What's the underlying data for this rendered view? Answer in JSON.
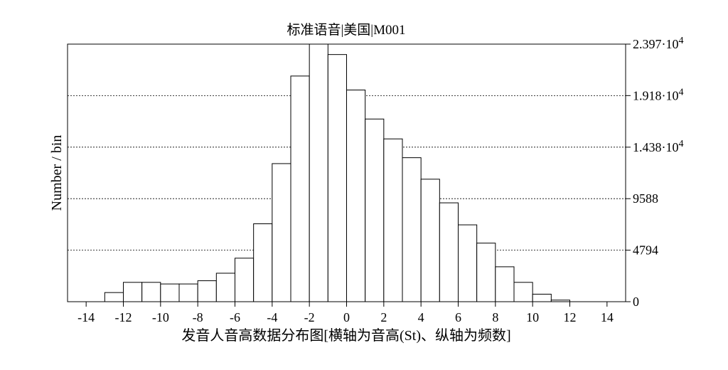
{
  "chart_data": {
    "type": "bar",
    "title": "标准语音|美国|M001",
    "xlabel": "发音人音高数据分布图[横轴为音高(St)、纵轴为频数]",
    "ylabel": "Number / bin",
    "xlim": [
      -15.0,
      15.0
    ],
    "ylim": [
      0,
      23970
    ],
    "bin_width": 1,
    "bins": [
      {
        "x0": -13,
        "x1": -12,
        "value": 850
      },
      {
        "x0": -12,
        "x1": -11,
        "value": 1800
      },
      {
        "x0": -11,
        "x1": -10,
        "value": 1800
      },
      {
        "x0": -10,
        "x1": -9,
        "value": 1650
      },
      {
        "x0": -9,
        "x1": -8,
        "value": 1650
      },
      {
        "x0": -8,
        "x1": -7,
        "value": 1950
      },
      {
        "x0": -7,
        "x1": -6,
        "value": 2650
      },
      {
        "x0": -6,
        "x1": -5,
        "value": 4050
      },
      {
        "x0": -5,
        "x1": -4,
        "value": 7250
      },
      {
        "x0": -4,
        "x1": -3,
        "value": 12850
      },
      {
        "x0": -3,
        "x1": -2,
        "value": 21000
      },
      {
        "x0": -2,
        "x1": -1,
        "value": 23970
      },
      {
        "x0": -1,
        "x1": 0,
        "value": 23000
      },
      {
        "x0": 0,
        "x1": 1,
        "value": 19700
      },
      {
        "x0": 1,
        "x1": 2,
        "value": 17000
      },
      {
        "x0": 2,
        "x1": 3,
        "value": 15150
      },
      {
        "x0": 3,
        "x1": 4,
        "value": 13400
      },
      {
        "x0": 4,
        "x1": 5,
        "value": 11400
      },
      {
        "x0": 5,
        "x1": 6,
        "value": 9200
      },
      {
        "x0": 6,
        "x1": 7,
        "value": 7150
      },
      {
        "x0": 7,
        "x1": 8,
        "value": 5450
      },
      {
        "x0": 8,
        "x1": 9,
        "value": 3250
      },
      {
        "x0": 9,
        "x1": 10,
        "value": 1800
      },
      {
        "x0": 10,
        "x1": 11,
        "value": 700
      },
      {
        "x0": 11,
        "x1": 12,
        "value": 150
      }
    ],
    "x_ticks": [
      {
        "value": -14,
        "label": "-14"
      },
      {
        "value": -12,
        "label": "-12"
      },
      {
        "value": -10,
        "label": "-10"
      },
      {
        "value": -8,
        "label": "-8"
      },
      {
        "value": -6,
        "label": "-6"
      },
      {
        "value": -4,
        "label": "-4"
      },
      {
        "value": -2,
        "label": "-2"
      },
      {
        "value": 0,
        "label": "0"
      },
      {
        "value": 2,
        "label": "2"
      },
      {
        "value": 4,
        "label": "4"
      },
      {
        "value": 6,
        "label": "6"
      },
      {
        "value": 8,
        "label": "8"
      },
      {
        "value": 10,
        "label": "10"
      },
      {
        "value": 12,
        "label": "12"
      },
      {
        "value": 14,
        "label": "14"
      }
    ],
    "y_ticks": [
      {
        "value": 0,
        "label": "0"
      },
      {
        "value": 4794,
        "label": "4794"
      },
      {
        "value": 9588,
        "label": "9588"
      },
      {
        "value": 14380,
        "mantissa": "1.438·10",
        "exp": "4"
      },
      {
        "value": 19180,
        "mantissa": "1.918·10",
        "exp": "4"
      },
      {
        "value": 23970,
        "mantissa": "2.397·10",
        "exp": "4"
      }
    ],
    "y_axis_side": "right",
    "grid": "horizontal dotted"
  }
}
